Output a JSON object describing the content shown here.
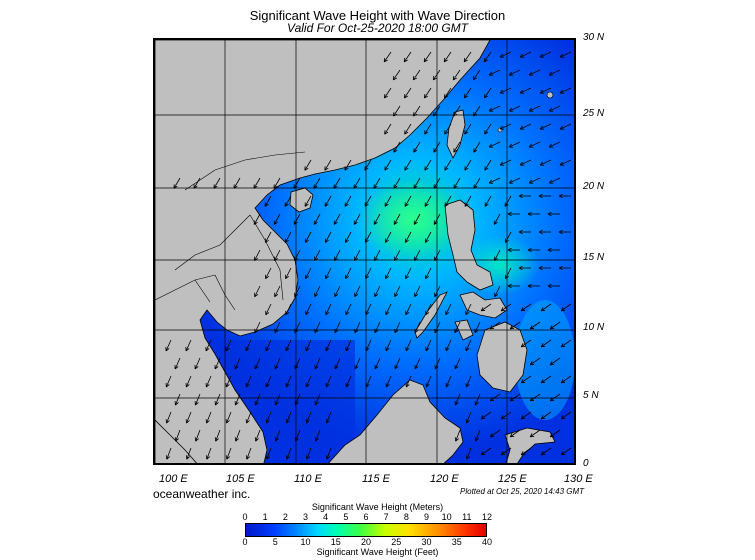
{
  "header": {
    "title": "Significant Wave Height with Wave Direction",
    "subtitle": "Valid For Oct-25-2020 18:00 GMT"
  },
  "axes": {
    "lat_labels": [
      "30 N",
      "25 N",
      "20 N",
      "15 N",
      "10 N",
      "5 N",
      "0"
    ],
    "lon_labels": [
      "100 E",
      "105 E",
      "110 E",
      "115 E",
      "120 E",
      "125 E",
      "130 E"
    ]
  },
  "footer": {
    "credit": "oceanweather inc.",
    "plotted": "Plotted at Oct 25, 2020 14:43 GMT"
  },
  "scale": {
    "title_meters": "Significant Wave Height (Meters)",
    "title_feet": "Significant Wave Height (Feet)",
    "meters_ticks": [
      "0",
      "1",
      "2",
      "3",
      "4",
      "5",
      "6",
      "7",
      "8",
      "9",
      "10",
      "11",
      "12"
    ],
    "feet_ticks": [
      "0",
      "5",
      "10",
      "15",
      "20",
      "25",
      "30",
      "35",
      "40"
    ]
  },
  "colors": {
    "land": "#bfbfbf",
    "ocean_low": "#0018c8",
    "ocean_mid": "#0070ff",
    "ocean_high": "#00e090",
    "arrow": "#000000"
  }
}
